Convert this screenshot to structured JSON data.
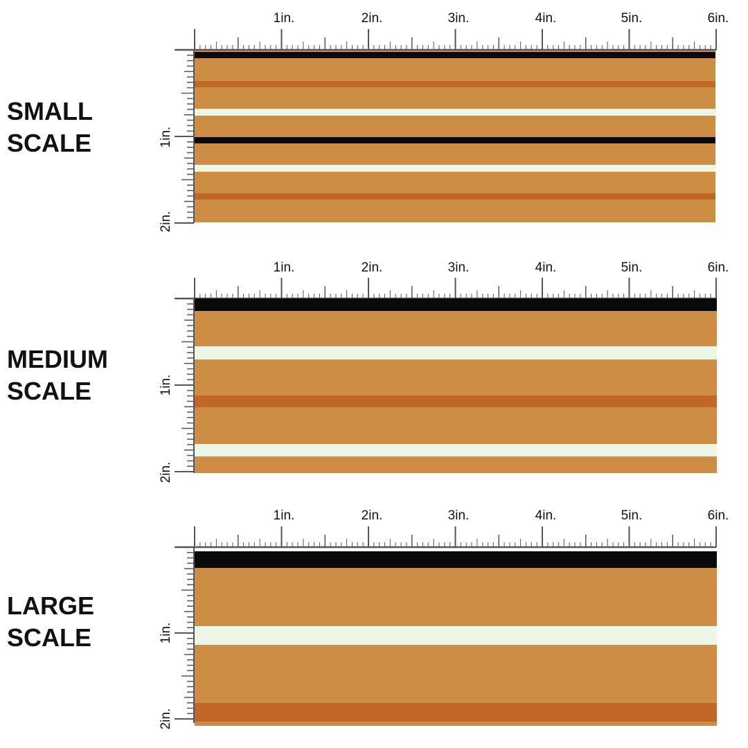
{
  "colors": {
    "tan": "#cd8d44",
    "orange": "#c2662a",
    "black": "#0a0a0a",
    "cream": "#eef6e6",
    "ruler": "#555555"
  },
  "ruler": {
    "top_labels": [
      "1in.",
      "2in.",
      "3in.",
      "4in.",
      "5in.",
      "6in."
    ],
    "side_labels": [
      "1in.",
      "2in."
    ]
  },
  "panels": [
    {
      "id": "small",
      "label_line1": "SMALL",
      "label_line2": "SCALE",
      "stripes": [
        {
          "color": "black",
          "start": 0.01,
          "end": 0.045
        },
        {
          "color": "orange",
          "start": 0.176,
          "end": 0.212
        },
        {
          "color": "cream",
          "start": 0.34,
          "end": 0.38
        },
        {
          "color": "black",
          "start": 0.505,
          "end": 0.54
        },
        {
          "color": "cream",
          "start": 0.665,
          "end": 0.705
        },
        {
          "color": "orange",
          "start": 0.832,
          "end": 0.868
        }
      ]
    },
    {
      "id": "medium",
      "label_line1": "MEDIUM",
      "label_line2": "SCALE",
      "stripes": [
        {
          "color": "black",
          "start": 0.0,
          "end": 0.07
        },
        {
          "color": "cream",
          "start": 0.275,
          "end": 0.35
        },
        {
          "color": "orange",
          "start": 0.555,
          "end": 0.625
        },
        {
          "color": "cream",
          "start": 0.835,
          "end": 0.905
        }
      ]
    },
    {
      "id": "large",
      "label_line1": "LARGE",
      "label_line2": "SCALE",
      "stripes": [
        {
          "color": "black",
          "start": 0.0,
          "end": 0.095
        },
        {
          "color": "cream",
          "start": 0.43,
          "end": 0.535
        },
        {
          "color": "orange",
          "start": 0.87,
          "end": 0.975
        }
      ]
    }
  ]
}
